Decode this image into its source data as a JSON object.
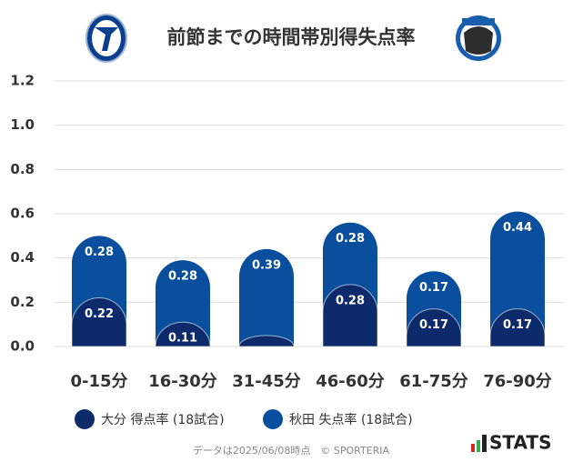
{
  "chart_data": {
    "type": "stacked_bar",
    "title": "前節までの時間帯別得失点率",
    "categories": [
      "0-15分",
      "16-30分",
      "31-45分",
      "46-60分",
      "61-75分",
      "76-90分"
    ],
    "series": [
      {
        "name": "大分 得点率 (18試合)",
        "color": "#0d2b6b",
        "values": [
          0.22,
          0.11,
          0.05,
          0.28,
          0.17,
          0.17
        ],
        "value_labels": [
          "0.22",
          "0.11",
          null,
          "0.28",
          "0.17",
          "0.17"
        ]
      },
      {
        "name": "秋田 失点率 (18試合)",
        "color": "#0a4f9e",
        "values": [
          0.28,
          0.28,
          0.39,
          0.28,
          0.17,
          0.44
        ]
      }
    ],
    "ylim": [
      0,
      1.2
    ],
    "yticks": [
      {
        "value": 0,
        "label": "0.0"
      },
      {
        "value": 0.2,
        "label": "0.2"
      },
      {
        "value": 0.4,
        "label": "0.4"
      },
      {
        "value": 0.6,
        "label": "0.6"
      },
      {
        "value": 0.8,
        "label": "0.8"
      },
      {
        "value": 1,
        "label": "1.0"
      },
      {
        "value": 1.2,
        "label": "1.2"
      }
    ],
    "grid": true,
    "legend": "bottom",
    "footer": "データは2025/06/08時点　© SPORTERIA",
    "brand": "STATS"
  }
}
